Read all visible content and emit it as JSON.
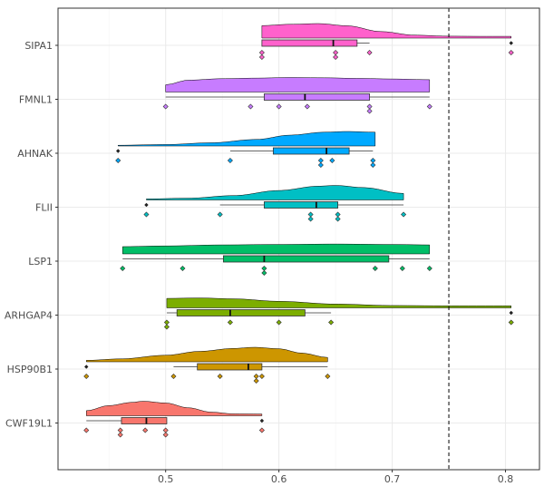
{
  "chart_data": {
    "type": "raincloud",
    "orientation": "horizontal",
    "title": "",
    "xlabel": "",
    "ylabel": "",
    "xlim": [
      0.405,
      0.83
    ],
    "x_ticks": [
      0.5,
      0.6,
      0.7,
      0.8
    ],
    "x_tick_labels": [
      "0.5",
      "0.6",
      "0.7",
      "0.8"
    ],
    "reference_line": {
      "x": 0.75,
      "style": "dashed",
      "color": "#000000"
    },
    "grid": true,
    "legend": "none",
    "series": [
      {
        "name": "SIPA1",
        "color": "#FF61CC",
        "points": [
          0.585,
          0.585,
          0.65,
          0.65,
          0.68,
          0.805
        ],
        "box": {
          "min": 0.585,
          "q1": 0.585,
          "median": 0.648,
          "q3": 0.669,
          "max": 0.68
        },
        "outliers": [
          0.805
        ],
        "density": [
          [
            0.585,
            0.86
          ],
          [
            0.61,
            0.95
          ],
          [
            0.635,
            1.0
          ],
          [
            0.66,
            0.85
          ],
          [
            0.69,
            0.45
          ],
          [
            0.72,
            0.2
          ],
          [
            0.75,
            0.13
          ],
          [
            0.78,
            0.12
          ],
          [
            0.805,
            0.12
          ]
        ]
      },
      {
        "name": "FMNL1",
        "color": "#C77CFF",
        "points": [
          0.5,
          0.575,
          0.6,
          0.625,
          0.68,
          0.68,
          0.733
        ],
        "box": {
          "min": 0.5,
          "q1": 0.587,
          "median": 0.623,
          "q3": 0.68,
          "max": 0.733
        },
        "outliers": [],
        "density": [
          [
            0.5,
            0.5
          ],
          [
            0.52,
            0.82
          ],
          [
            0.55,
            0.92
          ],
          [
            0.58,
            0.96
          ],
          [
            0.61,
            1.0
          ],
          [
            0.64,
            0.98
          ],
          [
            0.67,
            0.94
          ],
          [
            0.7,
            0.9
          ],
          [
            0.733,
            0.85
          ]
        ]
      },
      {
        "name": "AHNAK",
        "color": "#00A9FF",
        "points": [
          0.458,
          0.557,
          0.637,
          0.637,
          0.647,
          0.683,
          0.683
        ],
        "box": {
          "min": 0.557,
          "q1": 0.595,
          "median": 0.642,
          "q3": 0.662,
          "max": 0.683
        },
        "outliers": [
          0.458
        ],
        "density": [
          [
            0.458,
            0.05
          ],
          [
            0.5,
            0.1
          ],
          [
            0.54,
            0.22
          ],
          [
            0.58,
            0.45
          ],
          [
            0.61,
            0.75
          ],
          [
            0.64,
            0.95
          ],
          [
            0.66,
            1.0
          ],
          [
            0.685,
            0.95
          ]
        ]
      },
      {
        "name": "FLII",
        "color": "#00BFC4",
        "points": [
          0.483,
          0.548,
          0.628,
          0.628,
          0.652,
          0.652,
          0.71
        ],
        "box": {
          "min": 0.548,
          "q1": 0.587,
          "median": 0.633,
          "q3": 0.652,
          "max": 0.71
        },
        "outliers": [
          0.483
        ],
        "density": [
          [
            0.483,
            0.07
          ],
          [
            0.52,
            0.12
          ],
          [
            0.56,
            0.3
          ],
          [
            0.6,
            0.65
          ],
          [
            0.635,
            0.95
          ],
          [
            0.65,
            1.0
          ],
          [
            0.675,
            0.85
          ],
          [
            0.71,
            0.45
          ]
        ]
      },
      {
        "name": "LSP1",
        "color": "#00BE67",
        "points": [
          0.462,
          0.515,
          0.587,
          0.587,
          0.685,
          0.709,
          0.733
        ],
        "box": {
          "min": 0.462,
          "q1": 0.551,
          "median": 0.587,
          "q3": 0.697,
          "max": 0.733
        },
        "outliers": [],
        "density": [
          [
            0.462,
            0.5
          ],
          [
            0.5,
            0.55
          ],
          [
            0.55,
            0.62
          ],
          [
            0.6,
            0.65
          ],
          [
            0.65,
            0.68
          ],
          [
            0.7,
            0.65
          ],
          [
            0.733,
            0.62
          ]
        ]
      },
      {
        "name": "ARHGAP4",
        "color": "#7CAE00",
        "points": [
          0.501,
          0.501,
          0.557,
          0.6,
          0.646,
          0.805
        ],
        "box": {
          "min": 0.501,
          "q1": 0.51,
          "median": 0.557,
          "q3": 0.623,
          "max": 0.646
        },
        "outliers": [
          0.805
        ],
        "density": [
          [
            0.501,
            0.65
          ],
          [
            0.53,
            0.68
          ],
          [
            0.56,
            0.62
          ],
          [
            0.6,
            0.45
          ],
          [
            0.65,
            0.26
          ],
          [
            0.7,
            0.16
          ],
          [
            0.75,
            0.14
          ],
          [
            0.805,
            0.14
          ]
        ]
      },
      {
        "name": "HSP90B1",
        "color": "#CD9600",
        "points": [
          0.43,
          0.507,
          0.548,
          0.58,
          0.58,
          0.585,
          0.643
        ],
        "box": {
          "min": 0.507,
          "q1": 0.528,
          "median": 0.573,
          "q3": 0.585,
          "max": 0.643
        },
        "outliers": [
          0.43
        ],
        "density": [
          [
            0.43,
            0.1
          ],
          [
            0.46,
            0.2
          ],
          [
            0.5,
            0.45
          ],
          [
            0.53,
            0.72
          ],
          [
            0.56,
            0.92
          ],
          [
            0.578,
            1.0
          ],
          [
            0.6,
            0.9
          ],
          [
            0.62,
            0.6
          ],
          [
            0.643,
            0.3
          ]
        ]
      },
      {
        "name": "CWF19L1",
        "color": "#F8766D",
        "points": [
          0.43,
          0.46,
          0.46,
          0.482,
          0.5,
          0.5,
          0.585
        ],
        "box": {
          "min": 0.43,
          "q1": 0.461,
          "median": 0.483,
          "q3": 0.501,
          "max": 0.501
        },
        "outliers": [
          0.585
        ],
        "density": [
          [
            0.43,
            0.35
          ],
          [
            0.45,
            0.7
          ],
          [
            0.47,
            0.92
          ],
          [
            0.48,
            1.0
          ],
          [
            0.5,
            0.88
          ],
          [
            0.52,
            0.55
          ],
          [
            0.54,
            0.25
          ],
          [
            0.56,
            0.13
          ],
          [
            0.585,
            0.12
          ]
        ]
      }
    ]
  }
}
